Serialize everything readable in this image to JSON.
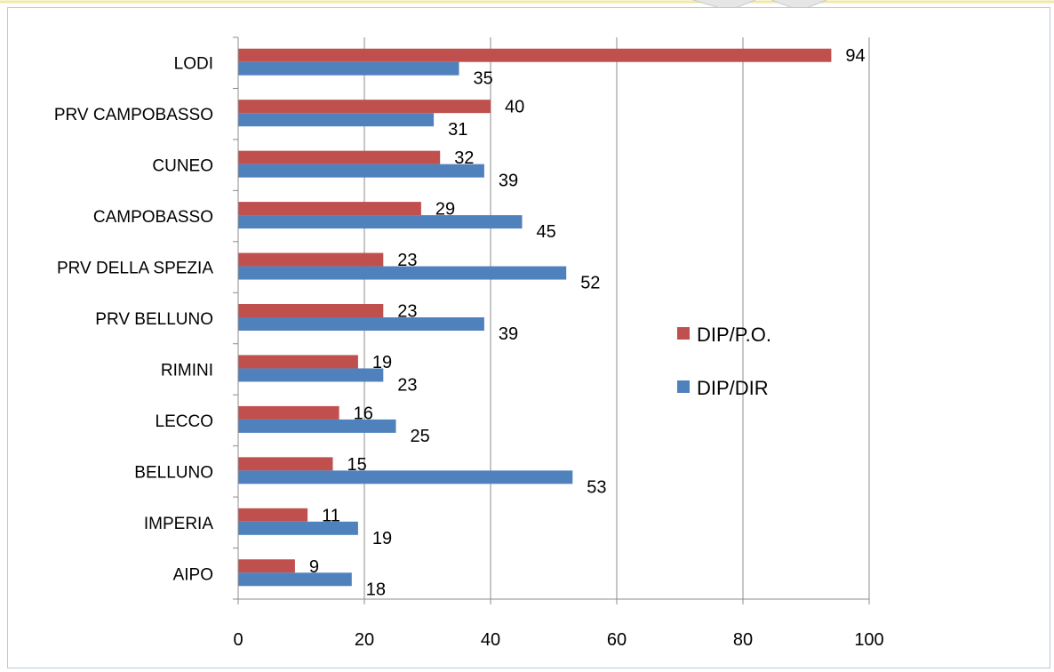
{
  "chart_data": {
    "type": "bar",
    "orientation": "horizontal",
    "categories": [
      "LODI",
      "PRV CAMPOBASSO",
      "CUNEO",
      "CAMPOBASSO",
      "PRV DELLA SPEZIA",
      "PRV BELLUNO",
      "RIMINI",
      "LECCO",
      "BELLUNO",
      "IMPERIA",
      "AIPO"
    ],
    "series": [
      {
        "name": "DIP/P.O.",
        "color": "#c0504d",
        "values": [
          94,
          40,
          32,
          29,
          23,
          23,
          19,
          16,
          15,
          11,
          9
        ]
      },
      {
        "name": "DIP/DIR",
        "color": "#4f81bd",
        "values": [
          35,
          31,
          39,
          45,
          52,
          39,
          23,
          25,
          53,
          19,
          18
        ]
      }
    ],
    "xlim": [
      0,
      100
    ],
    "xticks": [
      "0",
      "20",
      "40",
      "60",
      "80",
      "100"
    ],
    "grid": true,
    "legend_position": "right",
    "data_labels": true
  }
}
